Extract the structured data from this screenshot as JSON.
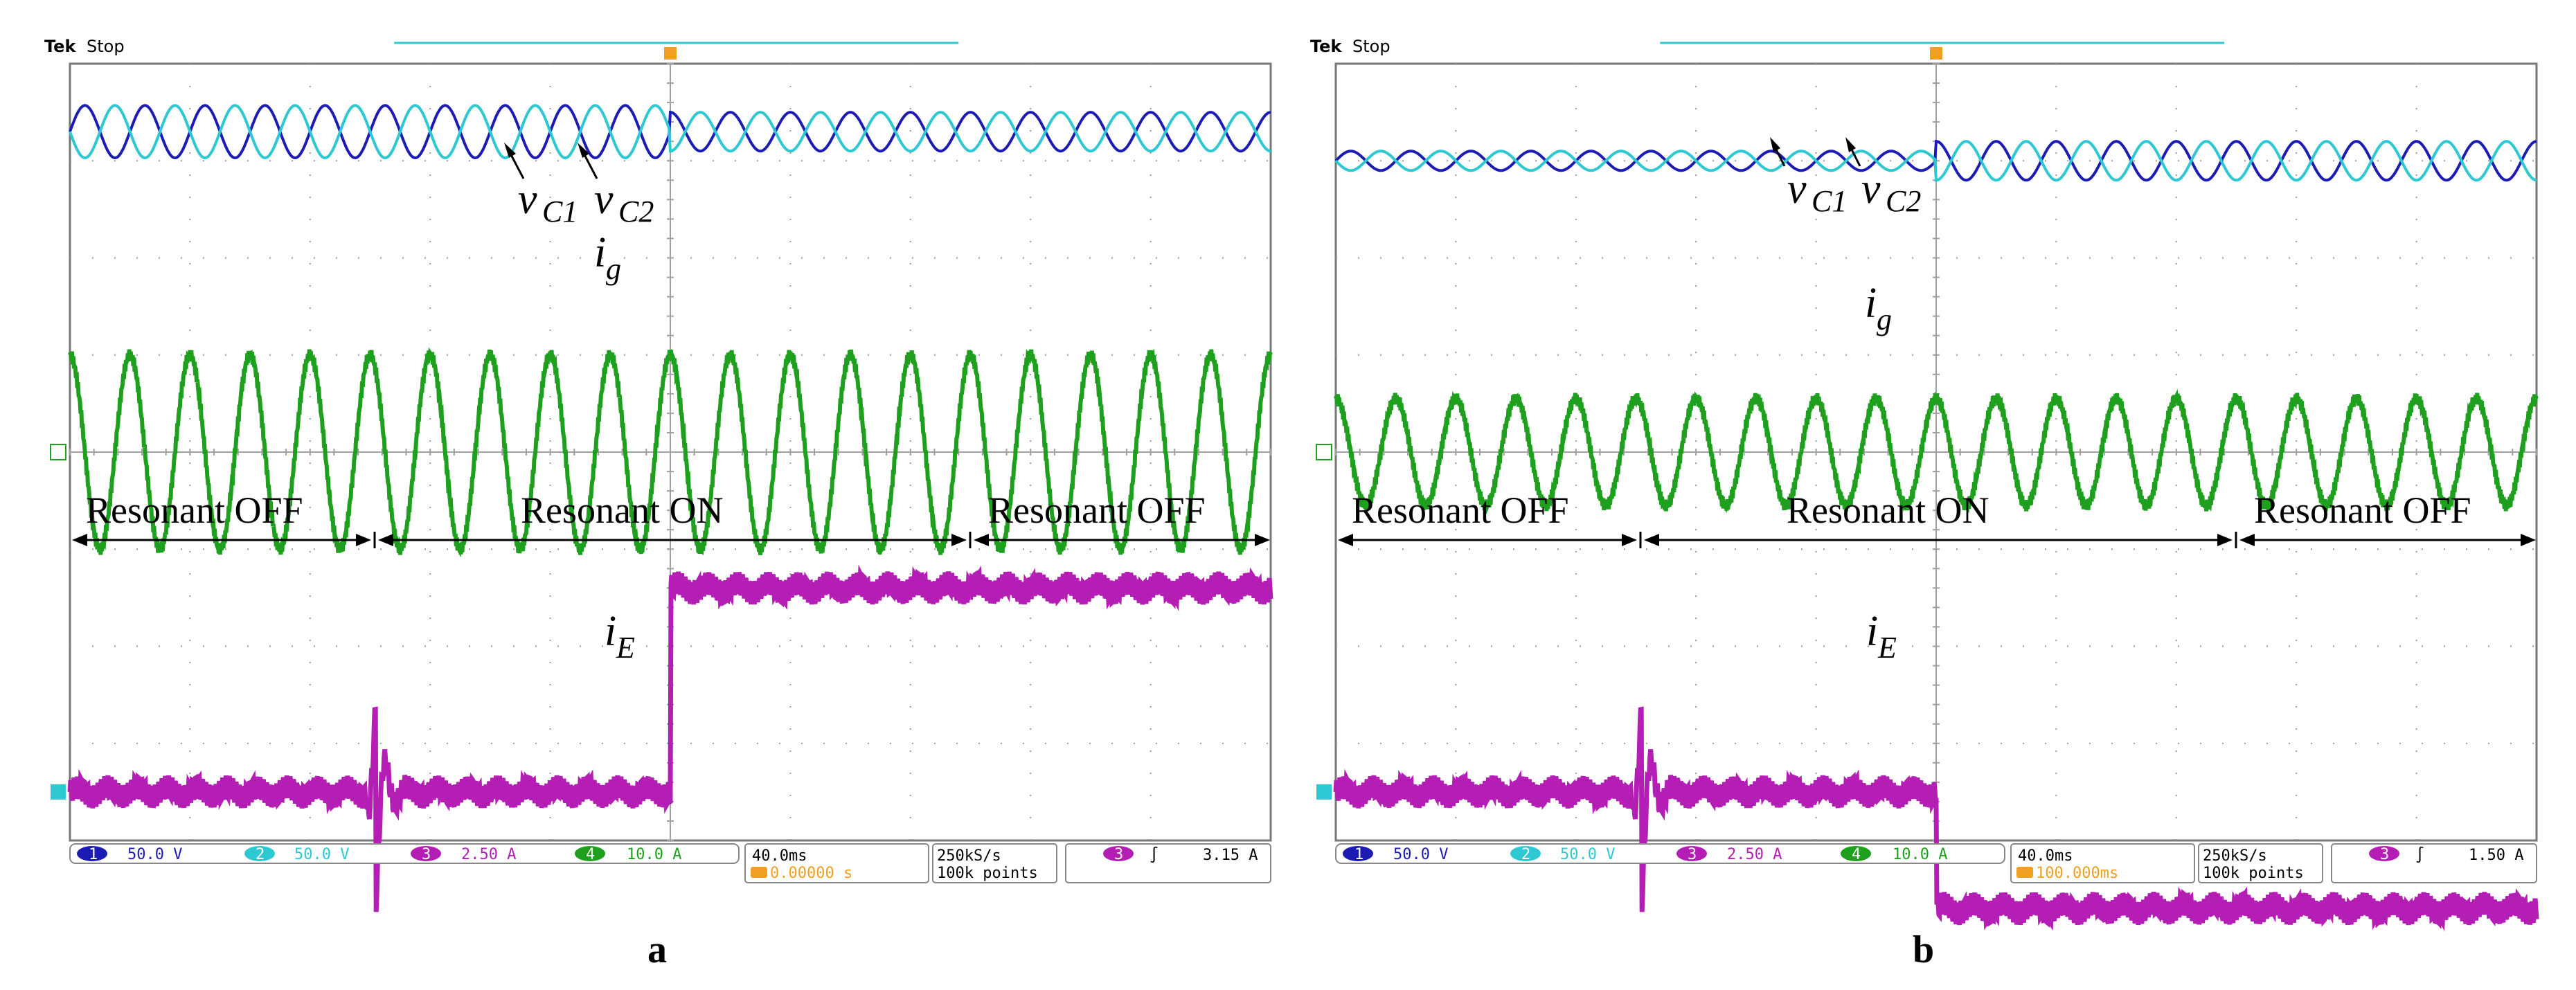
{
  "colors": {
    "ch1": "#1c1cb4",
    "ch2": "#2ec8d2",
    "ch3": "#b41eb4",
    "ch4": "#1ea01e",
    "trigger": "#f0a020",
    "grid": "#9a9a9a",
    "frame": "#777777"
  },
  "chart_data": [
    {
      "type": "line",
      "panel_label": "a",
      "header": {
        "brand": "Tek",
        "state": "Stop"
      },
      "channels": [
        {
          "num": "1",
          "scale": "50.0 V"
        },
        {
          "num": "2",
          "scale": "50.0 V"
        },
        {
          "num": "3",
          "scale": "2.50 A"
        },
        {
          "num": "4",
          "scale": "10.0 A"
        }
      ],
      "timebase": "40.0ms",
      "trigger_delay": "0.00000 s",
      "sample_rate": "250kS/s",
      "record_length": "100k points",
      "trigger_channel": "3",
      "trigger_slope": "∫",
      "trigger_level": "3.15 A",
      "divisions": {
        "x": 10,
        "y": 8
      },
      "time_window_ms": [
        -200,
        200
      ],
      "mode_regions": [
        {
          "label": "Resonant OFF",
          "t_ms": [
            -200,
            -100
          ]
        },
        {
          "label": "Resonant ON",
          "t_ms": [
            -100,
            100
          ]
        },
        {
          "label": "Resonant OFF",
          "t_ms": [
            100,
            200
          ]
        }
      ],
      "series": [
        {
          "name": "vC1",
          "channel": "1",
          "offset_div": 3.3,
          "before_amp_div": 0.27,
          "after_amp_div": 0.2,
          "switch_ms": 0,
          "cycles": 20
        },
        {
          "name": "vC2",
          "channel": "2",
          "offset_div": 3.3,
          "before_amp_div": 0.27,
          "after_amp_div": 0.2,
          "switch_ms": 0,
          "cycles": 20
        },
        {
          "name": "ig",
          "channel": "4",
          "offset_div": 0.0,
          "amplitude_div": 1.0,
          "cycles": 20
        },
        {
          "name": "iE",
          "channel": "3",
          "levels": [
            {
              "t_ms": [
                -200,
                0
              ],
              "div": -3.5
            },
            {
              "t_ms": [
                0,
                200
              ],
              "div": -1.4
            }
          ],
          "transient_ms": -98
        }
      ],
      "annotations": [
        {
          "text": "v",
          "sub": "C1"
        },
        {
          "text": "v",
          "sub": "C2"
        },
        {
          "text": "i",
          "sub": "g"
        },
        {
          "text": "i",
          "sub": "E"
        }
      ]
    },
    {
      "type": "line",
      "panel_label": "b",
      "header": {
        "brand": "Tek",
        "state": "Stop"
      },
      "channels": [
        {
          "num": "1",
          "scale": "50.0 V"
        },
        {
          "num": "2",
          "scale": "50.0 V"
        },
        {
          "num": "3",
          "scale": "2.50 A"
        },
        {
          "num": "4",
          "scale": "10.0 A"
        }
      ],
      "timebase": "40.0ms",
      "trigger_delay": "100.000ms",
      "sample_rate": "250kS/s",
      "record_length": "100k points",
      "trigger_channel": "3",
      "trigger_slope": "∫",
      "trigger_level": "1.50 A",
      "divisions": {
        "x": 10,
        "y": 8
      },
      "time_window_ms": [
        -200,
        200
      ],
      "mode_regions": [
        {
          "label": "Resonant OFF",
          "t_ms": [
            -200,
            -100
          ]
        },
        {
          "label": "Resonant ON",
          "t_ms": [
            -100,
            100
          ]
        },
        {
          "label": "Resonant OFF",
          "t_ms": [
            100,
            200
          ]
        }
      ],
      "series": [
        {
          "name": "vC1",
          "channel": "1",
          "offset_div": 3.0,
          "before_amp_div": 0.1,
          "after_amp_div": 0.2,
          "switch_ms": 0,
          "cycles": 20
        },
        {
          "name": "vC2",
          "channel": "2",
          "offset_div": 3.0,
          "before_amp_div": 0.1,
          "after_amp_div": 0.2,
          "switch_ms": 0,
          "cycles": 20
        },
        {
          "name": "ig",
          "channel": "4",
          "offset_div": 0.0,
          "amplitude_div": 0.55,
          "cycles": 20
        },
        {
          "name": "iE",
          "channel": "3",
          "levels": [
            {
              "t_ms": [
                -200,
                0
              ],
              "div": -3.5
            },
            {
              "t_ms": [
                0,
                200
              ],
              "div": -4.7
            }
          ],
          "transient_ms": -98
        }
      ],
      "annotations": [
        {
          "text": "v",
          "sub": "C1"
        },
        {
          "text": "v",
          "sub": "C2"
        },
        {
          "text": "i",
          "sub": "g"
        },
        {
          "text": "i",
          "sub": "E"
        }
      ]
    }
  ]
}
